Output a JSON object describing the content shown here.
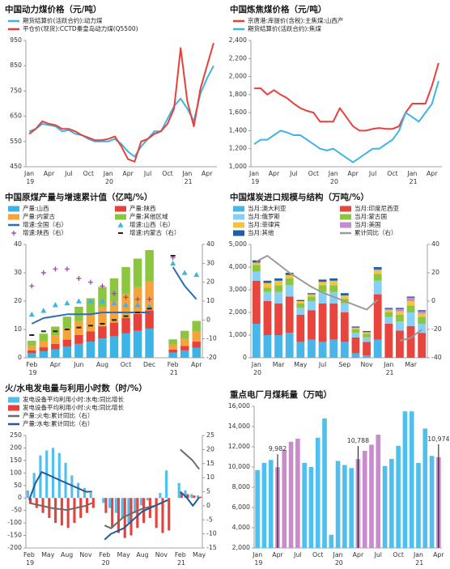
{
  "chart_data": [
    {
      "type": "line",
      "title": "中国动力煤价格（元/吨）",
      "categories": [
        "Jan 19",
        null,
        null,
        "Apr",
        null,
        null,
        "Jul",
        null,
        null,
        "Oct",
        null,
        null,
        "Jan 20",
        null,
        null,
        "Apr",
        null,
        null,
        "Jul",
        null,
        null,
        "Oct",
        null,
        null,
        "Jan 21",
        null,
        null,
        "Apr",
        null
      ],
      "series": [
        {
          "name": "期货结算价(活跃合约):动力煤",
          "color": "#3cb4e5",
          "kind": "line",
          "values": [
            590,
            600,
            620,
            615,
            610,
            590,
            595,
            580,
            575,
            560,
            550,
            550,
            550,
            560,
            540,
            510,
            490,
            530,
            560,
            590,
            590,
            640,
            690,
            720,
            680,
            630,
            740,
            800,
            850
          ]
        },
        {
          "name": "平仓价(现货):CCTD秦皇岛动力煤(Q5500)",
          "color": "#e8413c",
          "kind": "line",
          "values": [
            580,
            600,
            630,
            620,
            615,
            600,
            600,
            590,
            575,
            565,
            555,
            555,
            560,
            570,
            530,
            480,
            470,
            550,
            560,
            580,
            590,
            620,
            680,
            920,
            710,
            610,
            760,
            850,
            940
          ]
        }
      ],
      "ylim": [
        450,
        950
      ],
      "yticks": [
        450,
        550,
        650,
        750,
        850,
        950
      ]
    },
    {
      "type": "line",
      "title": "中国炼焦煤价格（元/吨）",
      "categories": [
        "Jan 19",
        null,
        null,
        "Apr",
        null,
        null,
        "Jul",
        null,
        null,
        "Oct",
        null,
        null,
        "Jan 20",
        null,
        null,
        "Apr",
        null,
        null,
        "Jul",
        null,
        null,
        "Oct",
        null,
        null,
        "Jan 21",
        null,
        null,
        "Apr",
        null
      ],
      "series": [
        {
          "name": "京唐港:库提价(含税):主焦煤:山西产",
          "color": "#e8413c",
          "kind": "line",
          "values": [
            1870,
            1870,
            1800,
            1850,
            1800,
            1760,
            1700,
            1650,
            1620,
            1600,
            1500,
            1500,
            1500,
            1650,
            1550,
            1450,
            1400,
            1400,
            1420,
            1430,
            1420,
            1420,
            1450,
            1600,
            1700,
            1700,
            1700,
            1900,
            2150
          ]
        },
        {
          "name": "期货结算价(活跃合约):焦煤",
          "color": "#3cb4e5",
          "kind": "line",
          "values": [
            1250,
            1300,
            1300,
            1350,
            1400,
            1380,
            1350,
            1350,
            1300,
            1250,
            1200,
            1180,
            1200,
            1150,
            1100,
            1050,
            1100,
            1150,
            1200,
            1200,
            1250,
            1300,
            1400,
            1600,
            1550,
            1500,
            1600,
            1700,
            1950
          ]
        }
      ],
      "ylim": [
        1000,
        2400
      ],
      "yticks": [
        {
          "value": 1000,
          "label": "1,000"
        },
        {
          "value": 1200,
          "label": "1,200"
        },
        {
          "value": 1400,
          "label": "1,400"
        },
        {
          "value": 1600,
          "label": "1,600"
        },
        {
          "value": 1800,
          "label": "1,800"
        },
        {
          "value": 2000,
          "label": "2,000"
        },
        {
          "value": 2200,
          "label": "2,200"
        },
        {
          "value": 2400,
          "label": "2,400"
        }
      ]
    },
    {
      "type": "bar",
      "stacked": true,
      "title": "中国原煤产量与增速累计值（亿吨/%）",
      "categories": [
        "Feb 19",
        null,
        "Apr",
        null,
        "Jun",
        null,
        "Aug",
        null,
        "Oct",
        null,
        "Dec",
        null,
        "Feb 21",
        null,
        "Apr"
      ],
      "series": [
        {
          "name": "产量:山西",
          "color": "#3cb4e5",
          "kind": "bar",
          "values": [
            1.6,
            2.3,
            3,
            3.9,
            4.9,
            5.7,
            6.8,
            7.6,
            8.6,
            9.5,
            10.3,
            null,
            1.8,
            2.6,
            3.5
          ]
        },
        {
          "name": "产量:陕西",
          "color": "#e8413c",
          "kind": "bar",
          "values": [
            1,
            1.4,
            1.9,
            2.5,
            3.1,
            3.6,
            4.3,
            4.8,
            5.4,
            6,
            6.4,
            null,
            1.1,
            1.6,
            2.2
          ]
        },
        {
          "name": "产量:内蒙古",
          "color": "#f5a33a",
          "kind": "bar",
          "values": [
            1.6,
            2.3,
            3,
            3.9,
            4.9,
            5.7,
            6.7,
            7.6,
            8.6,
            9.4,
            10.3,
            null,
            1.7,
            2.5,
            3.5
          ]
        },
        {
          "name": "产量:其他区域",
          "color": "#8cc63f",
          "kind": "bar",
          "values": [
            1.8,
            2.5,
            3.1,
            4.2,
            5.1,
            6,
            7.2,
            8,
            9.4,
            10.1,
            11,
            null,
            1.9,
            2.8,
            3.8
          ]
        },
        {
          "name": "增速:全国（右）",
          "color": "#2f6db5",
          "kind": "line",
          "axis": "y2",
          "values": [
            -2,
            1,
            2,
            3,
            3,
            3,
            4,
            4,
            4,
            4,
            4,
            null,
            28,
            18,
            11
          ]
        },
        {
          "name": "增速:山西（右）",
          "color": "#3cb4e5",
          "kind": "triangle",
          "axis": "y2",
          "values": [
            3,
            5,
            8,
            9,
            10,
            10,
            10,
            9,
            8,
            8,
            7,
            null,
            30,
            25,
            24
          ]
        },
        {
          "name": "增速:陕西（右）",
          "color": "#9b3fa0",
          "kind": "plus",
          "axis": "y2",
          "values": [
            18,
            25,
            27,
            27,
            22,
            20,
            18,
            14,
            12,
            11,
            11,
            null,
            33,
            null,
            null
          ]
        },
        {
          "name": "增速:内蒙古（右）",
          "color": "#222222",
          "kind": "dash",
          "axis": "y2",
          "values": [
            -8,
            -6,
            -6,
            -5,
            -4,
            -3,
            -2,
            0,
            2,
            4,
            6,
            null,
            34,
            null,
            null
          ]
        }
      ],
      "ylim": [
        0,
        40
      ],
      "yticks": [
        0,
        10,
        20,
        30,
        40
      ],
      "y2lim": [
        -20,
        40
      ],
      "y2ticks": [
        -20,
        -10,
        0,
        10,
        20,
        30,
        40
      ]
    },
    {
      "type": "bar",
      "stacked": true,
      "title": "中国煤炭进口规模与结构（万吨/%）",
      "categories": [
        "Jan 20",
        null,
        "Mar",
        null,
        "May",
        null,
        "Jul",
        null,
        "Sep",
        null,
        "Nov",
        null,
        "Jan 21",
        null,
        "Mar",
        null
      ],
      "series": [
        {
          "name": "当月:澳大利亚",
          "color": "#48b6e8",
          "kind": "bar",
          "values": [
            1500,
            1000,
            1000,
            1100,
            700,
            800,
            700,
            800,
            700,
            200,
            100,
            800,
            0,
            0,
            0,
            0
          ]
        },
        {
          "name": "当月:印度尼西亚",
          "color": "#e8453f",
          "kind": "bar",
          "values": [
            1900,
            1500,
            1400,
            1600,
            1200,
            1300,
            1700,
            1600,
            1300,
            700,
            600,
            2000,
            1500,
            1200,
            1400,
            1100
          ]
        },
        {
          "name": "当月:俄罗斯",
          "color": "#85d0f3",
          "kind": "bar",
          "values": [
            400,
            400,
            500,
            500,
            300,
            400,
            500,
            500,
            400,
            200,
            200,
            600,
            300,
            400,
            600,
            400
          ]
        },
        {
          "name": "当月:蒙古国",
          "color": "#8cc63f",
          "kind": "bar",
          "values": [
            300,
            200,
            300,
            300,
            200,
            200,
            300,
            300,
            200,
            150,
            150,
            300,
            200,
            300,
            300,
            300
          ]
        },
        {
          "name": "当月:菲律宾",
          "color": "#f5c342",
          "kind": "bar",
          "values": [
            100,
            200,
            200,
            150,
            100,
            100,
            150,
            200,
            150,
            80,
            80,
            150,
            100,
            150,
            200,
            150
          ]
        },
        {
          "name": "当月:美国",
          "color": "#c58bd0",
          "kind": "bar",
          "values": [
            0,
            0,
            0,
            0,
            0,
            0,
            0,
            0,
            0,
            0,
            0,
            50,
            50,
            100,
            150,
            100
          ]
        },
        {
          "name": "当月:其他",
          "color": "#1f5fa8",
          "kind": "bar",
          "values": [
            100,
            100,
            100,
            100,
            50,
            50,
            100,
            100,
            100,
            50,
            50,
            100,
            50,
            50,
            50,
            50
          ]
        },
        {
          "name": "累计同比（右）",
          "color": "#9a9a9a",
          "kind": "line",
          "axis": "y2",
          "values": [
            28,
            32,
            26,
            20,
            15,
            10,
            6,
            3,
            0,
            -3,
            -6,
            1,
            null,
            -28,
            -26,
            -20
          ]
        }
      ],
      "ylim": [
        0,
        5000
      ],
      "yticks": [
        0,
        {
          "value": 1000,
          "label": "1,000"
        },
        {
          "value": 2000,
          "label": "2,000"
        },
        {
          "value": 3000,
          "label": "3,000"
        },
        {
          "value": 4000,
          "label": "4,000"
        },
        {
          "value": 5000,
          "label": "5,000"
        }
      ],
      "y2lim": [
        -40,
        40
      ],
      "y2ticks": [
        -40,
        -20,
        0,
        20,
        40
      ]
    },
    {
      "type": "bar",
      "stacked": false,
      "title": "火/水电发电量与利用小时数（时/%）",
      "categories": [
        "Feb 19",
        null,
        null,
        "May",
        null,
        null,
        "Aug",
        null,
        null,
        "Nov",
        null,
        null,
        "Feb 20",
        null,
        null,
        "May",
        null,
        null,
        "Aug",
        null,
        null,
        "Nov",
        null,
        null,
        "Feb 21",
        null,
        null,
        "May"
      ],
      "series": [
        {
          "name": "发电设备平均利用小时:水电:同比增长",
          "color": "#4fc0ee",
          "kind": "bar",
          "values": [
            30,
            100,
            170,
            190,
            200,
            180,
            140,
            90,
            60,
            40,
            20,
            null,
            -20,
            -40,
            -60,
            -80,
            -100,
            -60,
            -30,
            -10,
            0,
            20,
            110,
            null,
            60,
            30,
            15,
            10
          ]
        },
        {
          "name": "发电设备平均利用小时:火电:同比增长",
          "color": "#e8413c",
          "kind": "bar",
          "values": [
            -20,
            -40,
            -60,
            -80,
            -100,
            -110,
            -120,
            -100,
            -80,
            -60,
            -40,
            null,
            -60,
            -120,
            -140,
            -160,
            -150,
            -120,
            -100,
            -80,
            -120,
            -140,
            -130,
            null,
            20,
            15,
            10,
            5
          ]
        },
        {
          "name": "产量:火电:累计同比（右）",
          "color": "#6b6b6b",
          "kind": "line",
          "axis": "y2",
          "values": [
            1,
            0.5,
            0,
            -0.5,
            -1,
            -1.2,
            -1.5,
            -1,
            -0.5,
            0,
            1,
            null,
            -7,
            -8,
            -6,
            -4,
            -3,
            -2,
            -1,
            -0.5,
            0,
            1,
            2,
            null,
            20,
            18,
            16,
            13
          ]
        },
        {
          "name": "产量:水电:累计同比（右）",
          "color": "#1f5a9c",
          "kind": "line",
          "axis": "y2",
          "values": [
            2,
            8,
            12,
            11,
            10,
            9,
            8,
            7,
            6,
            5,
            5,
            null,
            -12,
            -10,
            -9,
            -8,
            -6,
            -4,
            -2,
            -1,
            0,
            1,
            2,
            null,
            5,
            3,
            0,
            3
          ]
        }
      ],
      "ylim": [
        -200,
        250
      ],
      "yticks": [
        -200,
        -150,
        -100,
        -50,
        0,
        50,
        100,
        150,
        200,
        250
      ],
      "y2lim": [
        -15,
        25
      ],
      "y2ticks": [
        -15,
        -10,
        -5,
        0,
        5,
        10,
        15,
        20,
        25
      ]
    },
    {
      "type": "bar",
      "title": "重点电厂月煤耗量（万吨）",
      "categories": [
        "Jan 19",
        null,
        null,
        "Apr",
        null,
        null,
        "Jul",
        null,
        null,
        "Oct",
        null,
        null,
        "Jan 20",
        null,
        null,
        "Apr",
        null,
        null,
        "Jul",
        null,
        null,
        "Oct",
        null,
        null,
        "Jan 21",
        null,
        null,
        "Apr"
      ],
      "values": [
        9700,
        10400,
        10700,
        9982,
        11700,
        12500,
        12800,
        10400,
        10000,
        12900,
        14800,
        3300,
        10600,
        10200,
        9900,
        10788,
        11600,
        12200,
        13200,
        10100,
        10800,
        12100,
        15500,
        15500,
        10400,
        13800,
        11100,
        10974
      ],
      "value_labels": [
        null,
        null,
        null,
        "9,982",
        null,
        null,
        null,
        null,
        null,
        null,
        null,
        null,
        null,
        null,
        null,
        "10,788",
        null,
        null,
        null,
        null,
        null,
        null,
        null,
        null,
        null,
        null,
        null,
        "10,974"
      ],
      "colors": [
        "#4fc0ee",
        "#4fc0ee",
        "#4fc0ee",
        "#c98bcb",
        "#c98bcb",
        "#c98bcb",
        "#c98bcb",
        "#4fc0ee",
        "#4fc0ee",
        "#4fc0ee",
        "#4fc0ee",
        "#4fc0ee",
        "#4fc0ee",
        "#4fc0ee",
        "#4fc0ee",
        "#c98bcb",
        "#c98bcb",
        "#c98bcb",
        "#c98bcb",
        "#4fc0ee",
        "#4fc0ee",
        "#4fc0ee",
        "#4fc0ee",
        "#4fc0ee",
        "#4fc0ee",
        "#4fc0ee",
        "#4fc0ee",
        "#c98bcb"
      ],
      "ylim": [
        2000,
        16000
      ],
      "yticks": [
        {
          "value": 2000,
          "label": "2,000"
        },
        {
          "value": 4000,
          "label": "4,000"
        },
        {
          "value": 6000,
          "label": "6,000"
        },
        {
          "value": 8000,
          "label": "8,000"
        },
        {
          "value": 10000,
          "label": "10,000"
        },
        {
          "value": 12000,
          "label": "12,000"
        },
        {
          "value": 14000,
          "label": "14,000"
        },
        {
          "value": 16000,
          "label": "16,000"
        }
      ]
    }
  ]
}
